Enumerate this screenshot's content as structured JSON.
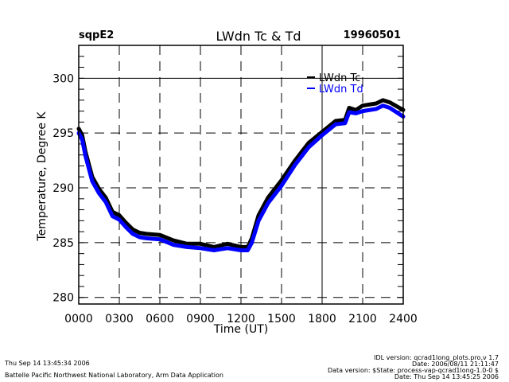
{
  "header": {
    "site": "sqpE2",
    "title": "LWdn Tc & Td",
    "date": "19960501"
  },
  "footer": {
    "left": [
      "Thu Sep 14 13:45:34 2006",
      "Battelle Pacific Northwest National Laboratory, Arm Data Application"
    ],
    "right": [
      "IDL version: qcrad1long_plots.pro,v 1.7",
      "Date: 2006/08/11 21:11:47",
      "Data version: $State: process-vap-qcrad1long-1.0-0 $",
      "Date: Thu Sep 14 13:45:25 2006"
    ]
  },
  "chart_data": {
    "type": "line",
    "title": "LWdn Tc & Td",
    "xlabel": "Time (UT)",
    "ylabel": "Temperature, Degree K",
    "xlim": [
      0,
      24
    ],
    "ylim": [
      279.4,
      303
    ],
    "x_ticks": [
      0,
      3,
      6,
      9,
      12,
      15,
      18,
      21,
      24
    ],
    "x_tick_labels": [
      "0000",
      "0300",
      "0600",
      "0900",
      "1200",
      "1500",
      "1800",
      "2100",
      "2400"
    ],
    "y_ticks": [
      280,
      285,
      290,
      295,
      300
    ],
    "y_tick_labels": [
      "280",
      "285",
      "290",
      "295",
      "300"
    ],
    "y_minor_step": 1,
    "grid": "dashed",
    "solid_reference_lines": {
      "x": [
        18
      ],
      "y": [
        300
      ]
    },
    "legend": {
      "placement": "top-right",
      "entries": [
        "LWdn Tc",
        "LWdn Td"
      ]
    },
    "x": [
      0,
      0.25,
      0.5,
      1,
      1.5,
      2,
      2.5,
      3,
      3.5,
      4,
      4.5,
      5,
      6,
      7,
      8,
      9,
      10,
      11,
      12,
      12.5,
      12.8,
      13.3,
      14,
      15,
      16,
      17,
      18,
      19,
      19.7,
      20,
      20.5,
      21,
      22,
      22.5,
      23,
      24
    ],
    "series": [
      {
        "name": "LWdn Tc",
        "color": "#000000",
        "values": [
          295.4,
          294.8,
          293.3,
          291.0,
          289.9,
          289.1,
          287.8,
          287.5,
          286.8,
          286.2,
          285.9,
          285.8,
          285.7,
          285.2,
          284.9,
          284.9,
          284.6,
          284.9,
          284.6,
          284.6,
          285.4,
          287.5,
          289.1,
          290.7,
          292.5,
          294.1,
          295.1,
          296.1,
          296.2,
          297.3,
          297.1,
          297.5,
          297.7,
          298.0,
          297.8,
          297.1
        ]
      },
      {
        "name": "LWdn Td",
        "color": "#0000ff",
        "values": [
          295.0,
          294.4,
          292.9,
          290.6,
          289.5,
          288.7,
          287.4,
          287.1,
          286.4,
          285.8,
          285.5,
          285.4,
          285.3,
          284.8,
          284.6,
          284.5,
          284.3,
          284.5,
          284.3,
          284.3,
          285.0,
          287.0,
          288.6,
          290.2,
          292.1,
          293.7,
          294.8,
          295.8,
          295.9,
          296.9,
          296.8,
          297.0,
          297.2,
          297.5,
          297.3,
          296.5
        ]
      }
    ]
  }
}
